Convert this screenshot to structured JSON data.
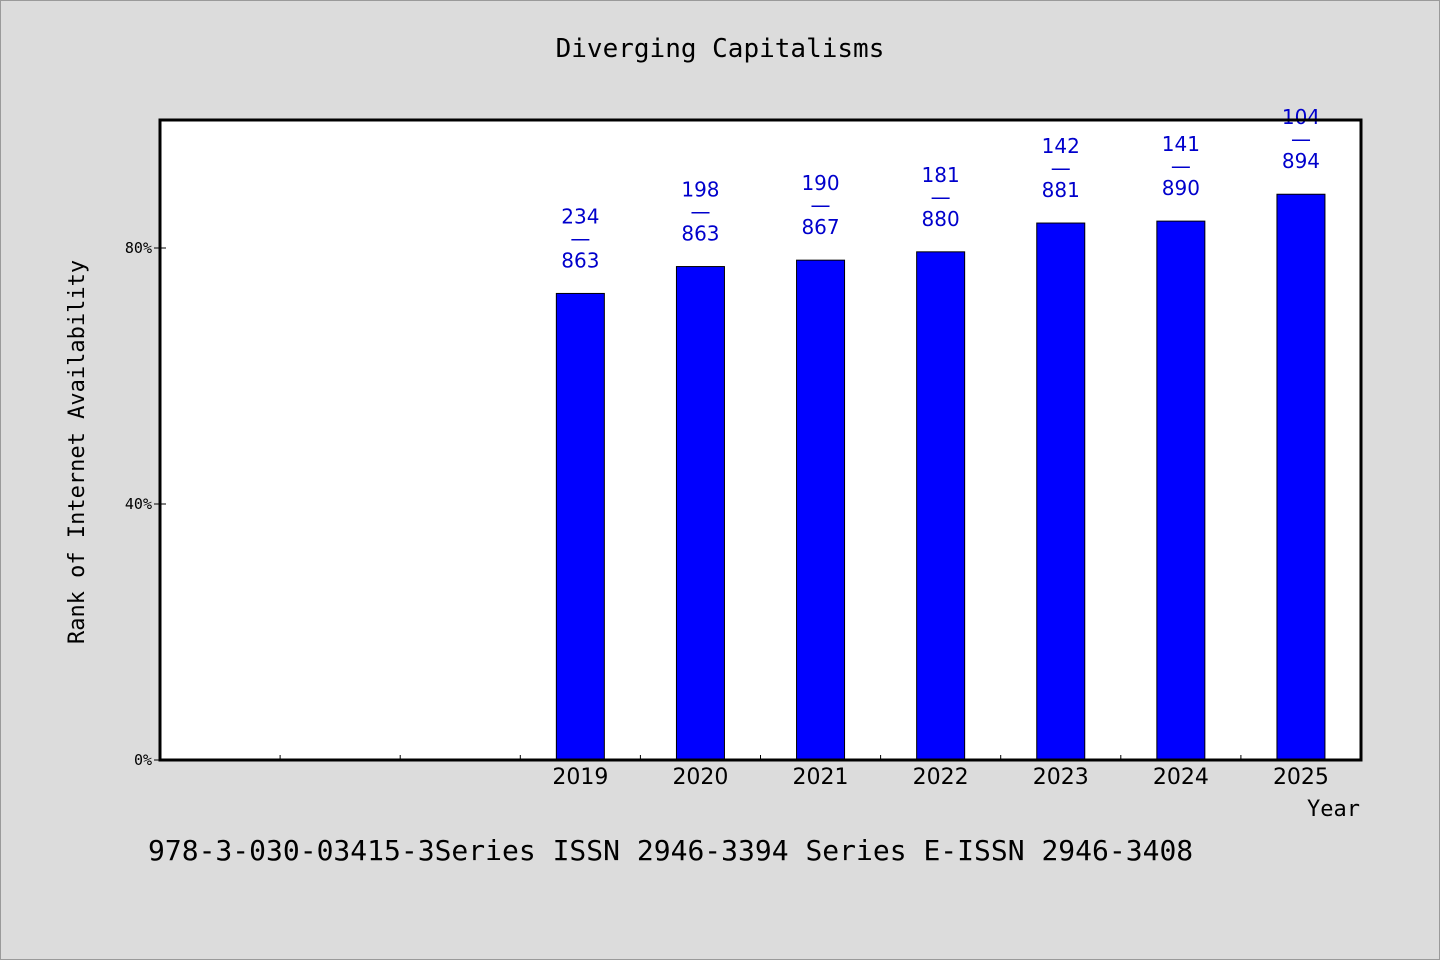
{
  "chart_data": {
    "type": "bar",
    "title": "Diverging Capitalisms",
    "xlabel": "Year",
    "ylabel": "Rank of Internet Availability",
    "ylim": [
      0,
      100
    ],
    "yticks": [
      "0%",
      "40%",
      "80%"
    ],
    "ytick_values": [
      0,
      40,
      80
    ],
    "categories": [
      "2019",
      "2020",
      "2021",
      "2022",
      "2023",
      "2024",
      "2025"
    ],
    "series": [
      {
        "values": [
          72.9,
          77.1,
          78.1,
          79.4,
          83.9,
          84.2,
          88.4
        ],
        "labels": [
          [
            "234",
            "—",
            "863"
          ],
          [
            "198",
            "—",
            "863"
          ],
          [
            "190",
            "—",
            "867"
          ],
          [
            "181",
            "—",
            "880"
          ],
          [
            "142",
            "—",
            "881"
          ],
          [
            "141",
            "—",
            "890"
          ],
          [
            "104",
            "—",
            "894"
          ]
        ]
      }
    ],
    "empty_leading_slots": 3,
    "bar_color": "#0000ff",
    "label_color": "#0000cc",
    "grid": false,
    "legend": "none"
  },
  "footer": {
    "text": "978-3-030-03415-3Series ISSN 2946-3394 Series E-ISSN 2946-3408"
  }
}
